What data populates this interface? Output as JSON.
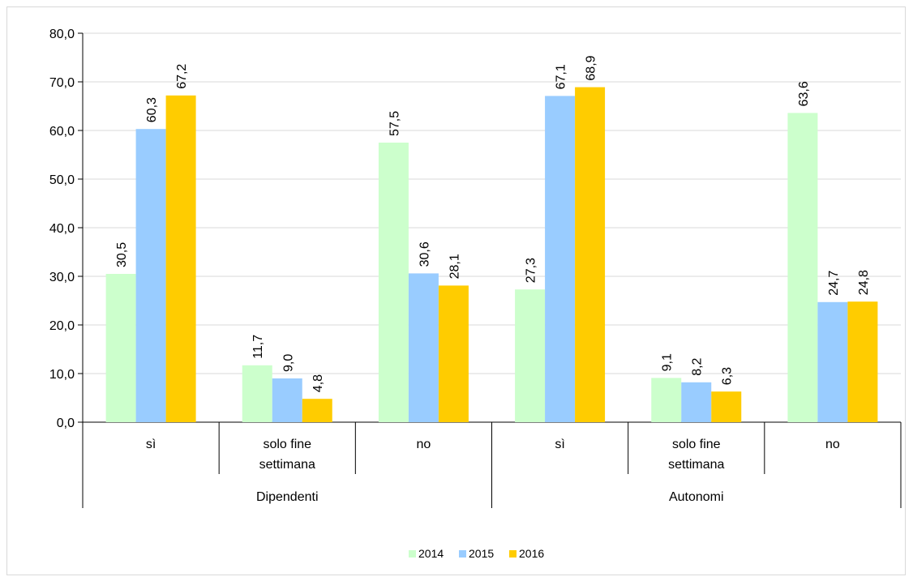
{
  "chart_data": {
    "type": "bar",
    "title": "",
    "xlabel": "",
    "ylabel": "",
    "ylim": [
      0,
      80
    ],
    "yticks": [
      "0,0",
      "10,0",
      "20,0",
      "30,0",
      "40,0",
      "50,0",
      "60,0",
      "70,0",
      "80,0"
    ],
    "grid": true,
    "legend_position": "bottom",
    "groups": [
      {
        "label": "Dipendenti",
        "categories": [
          [
            "sì"
          ],
          [
            "solo fine",
            "settimana"
          ],
          [
            "no"
          ]
        ]
      },
      {
        "label": "Autonomi",
        "categories": [
          [
            "sì"
          ],
          [
            "solo fine",
            "settimana"
          ],
          [
            "no"
          ]
        ]
      }
    ],
    "categories": [
      "sì",
      "solo fine settimana",
      "no",
      "sì",
      "solo fine settimana",
      "no"
    ],
    "series": [
      {
        "name": "2014",
        "color": "#ccffcc",
        "values": [
          30.5,
          11.7,
          57.5,
          27.3,
          9.1,
          63.6
        ],
        "labels": [
          "30,5",
          "11,7",
          "57,5",
          "27,3",
          "9,1",
          "63,6"
        ]
      },
      {
        "name": "2015",
        "color": "#99ccff",
        "values": [
          60.3,
          9.0,
          30.6,
          67.1,
          8.2,
          24.7
        ],
        "labels": [
          "60,3",
          "9,0",
          "30,6",
          "67,1",
          "8,2",
          "24,7"
        ]
      },
      {
        "name": "2016",
        "color": "#ffcc00",
        "values": [
          67.2,
          4.8,
          28.1,
          68.9,
          6.3,
          24.8
        ],
        "labels": [
          "67,2",
          "4,8",
          "28,1",
          "68,9",
          "6,3",
          "24,8"
        ]
      }
    ]
  }
}
